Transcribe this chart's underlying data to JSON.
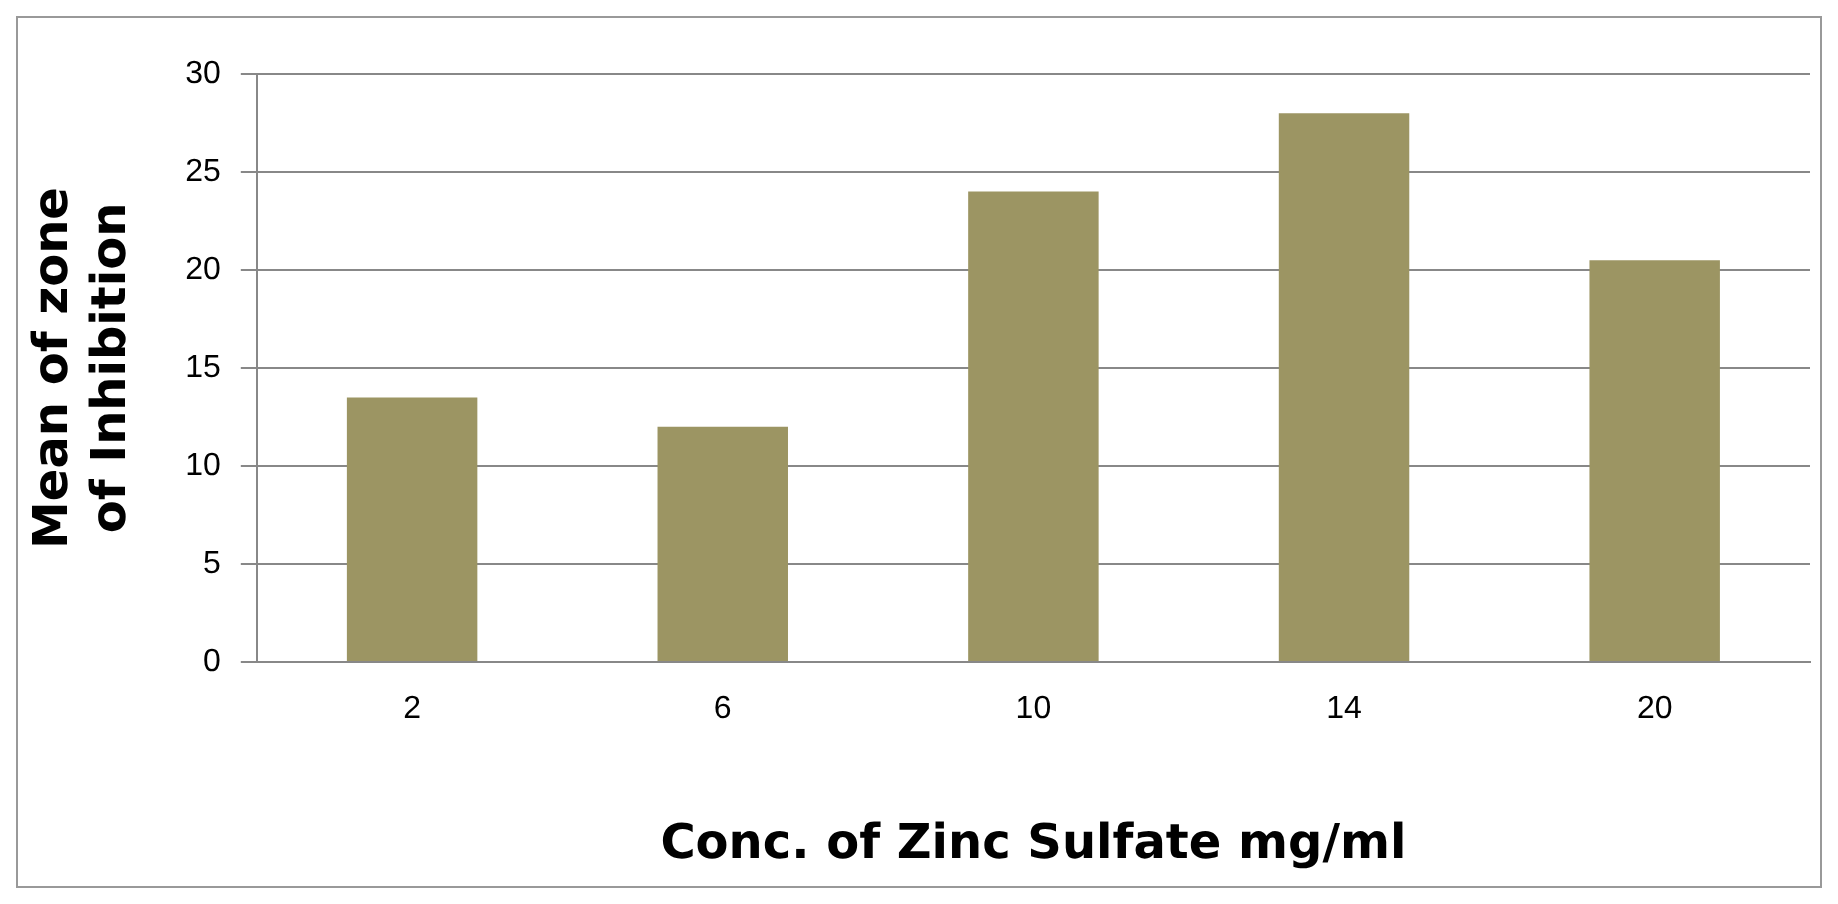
{
  "chart_data": {
    "type": "bar",
    "xlabel": "Conc. of Zinc Sulfate mg/ml",
    "ylabel": "Mean of zone of Inhibition",
    "categories": [
      "2",
      "6",
      "10",
      "14",
      "20"
    ],
    "values": [
      13.5,
      12,
      24,
      28,
      20.5
    ],
    "color": "#9c9563",
    "ylim": [
      0,
      30
    ],
    "yticks": [
      0,
      5,
      10,
      15,
      20,
      25,
      30
    ],
    "grid": "y",
    "legend": false
  }
}
